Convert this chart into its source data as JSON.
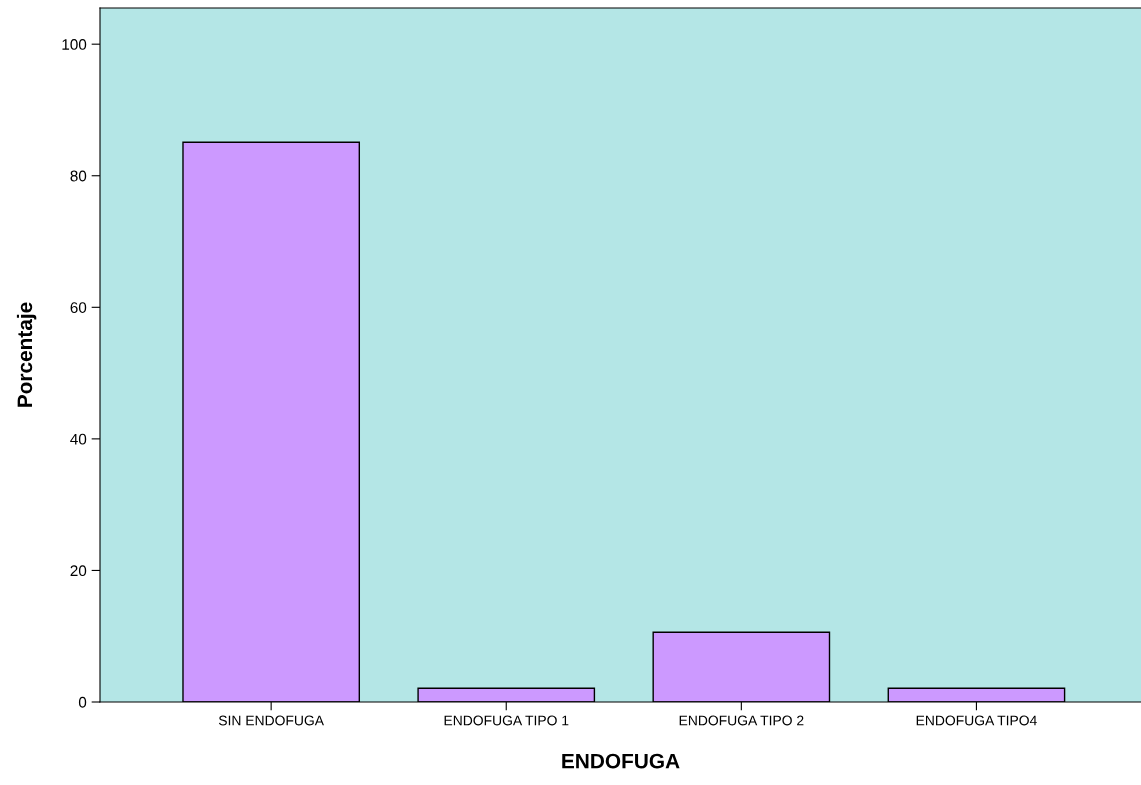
{
  "chart_data": {
    "type": "bar",
    "xlabel": "ENDOFUGA",
    "ylabel": "Porcentaje",
    "categories": [
      "SIN ENDOFUGA",
      "ENDOFUGA TIPO 1",
      "ENDOFUGA TIPO 2",
      "ENDOFUGA TIPO4"
    ],
    "values": [
      85.1,
      2.1,
      10.6,
      2.1
    ],
    "color": "#cc99ff",
    "ylim": [
      0,
      105.5
    ],
    "yticks": [
      0,
      20,
      40,
      60,
      80,
      100
    ],
    "grid": false
  }
}
